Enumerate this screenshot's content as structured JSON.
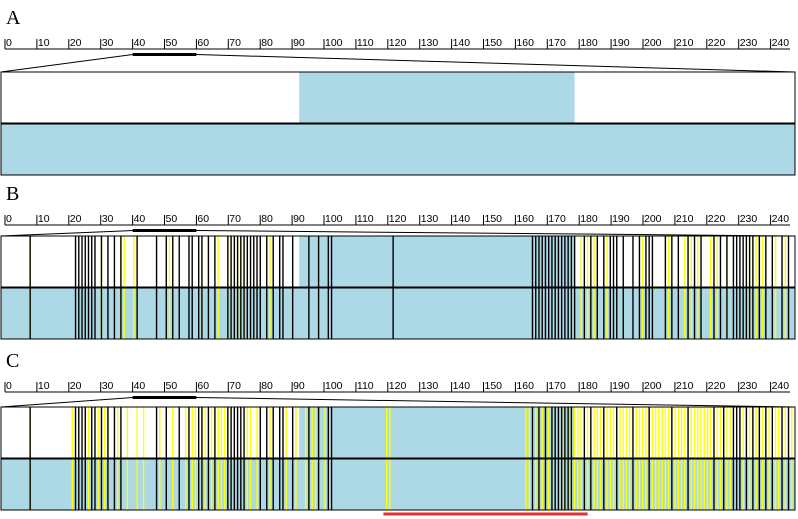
{
  "colors": {
    "track_fill": "#add8e6",
    "background": "#ffffff",
    "line": "#000000",
    "highlight": "#ffff00",
    "marker": "#e03030"
  },
  "ruler": {
    "ticks": [
      "0",
      "10",
      "20",
      "30",
      "40",
      "50",
      "60",
      "70",
      "80",
      "90",
      "100",
      "110",
      "120",
      "130",
      "140",
      "150",
      "160",
      "170",
      "180",
      "190",
      "200",
      "210",
      "220",
      "230",
      "240"
    ],
    "zoom_region": [
      40,
      60
    ]
  },
  "panels": [
    {
      "label": "A",
      "top_track": {
        "shaded_region": [
          92,
          177
        ]
      },
      "bottom_track": {
        "shaded_region": [
          0,
          245
        ]
      },
      "black_lines": [],
      "yellow_lines": []
    },
    {
      "label": "B",
      "top_track": {
        "shaded_region": [
          92,
          177
        ]
      },
      "bottom_track": {
        "shaded_region": [
          0,
          245
        ]
      },
      "black_lines": [
        9,
        23,
        24,
        25,
        26,
        27,
        28,
        29,
        31,
        33,
        35,
        37,
        42,
        48,
        51,
        53,
        55,
        58,
        59,
        61,
        62,
        64,
        66,
        70,
        71,
        72,
        73,
        74,
        75,
        76,
        77,
        78,
        79,
        80,
        82,
        84,
        86,
        87,
        90,
        95,
        98,
        101,
        102,
        121,
        164,
        165,
        166,
        167,
        168,
        169,
        170,
        171,
        172,
        173,
        174,
        175,
        176,
        177,
        180,
        182,
        184,
        186,
        188,
        189,
        190,
        192,
        195,
        197,
        199,
        200,
        201,
        205,
        207,
        209,
        212,
        214,
        216,
        220,
        222,
        224,
        226,
        227,
        228,
        229,
        230,
        231,
        232,
        234,
        236,
        238,
        241,
        243
      ],
      "yellow_lines": [
        9,
        31,
        37,
        38,
        41,
        52,
        62,
        67,
        70,
        71,
        73,
        74,
        75,
        78,
        83,
        179,
        181,
        183,
        187,
        192,
        198,
        206,
        211,
        213,
        215,
        219,
        221,
        224,
        231,
        233,
        235,
        238,
        239,
        242
      ]
    },
    {
      "label": "C",
      "top_track": {
        "shaded_region": [
          92,
          177
        ]
      },
      "bottom_track": {
        "shaded_region": [
          0,
          245
        ]
      },
      "black_lines": [
        9,
        23,
        24,
        25,
        26,
        28,
        29,
        31,
        33,
        35,
        37,
        48,
        51,
        55,
        58,
        61,
        62,
        64,
        66,
        70,
        71,
        72,
        73,
        74,
        75,
        80,
        82,
        84,
        86,
        87,
        90,
        95,
        98,
        101,
        102,
        164,
        166,
        168,
        170,
        171,
        172,
        173,
        174,
        175,
        176,
        180,
        182,
        186,
        190,
        195,
        200,
        207,
        212,
        220,
        223,
        226,
        227,
        228,
        230,
        232,
        234,
        236,
        238,
        241,
        243
      ],
      "yellow_lines": [
        9,
        22,
        24,
        27,
        30,
        32,
        33,
        36,
        39,
        42,
        44,
        49,
        53,
        57,
        59,
        60,
        62,
        63,
        64,
        65,
        66,
        67,
        68,
        69,
        71,
        72,
        76,
        77,
        79,
        82,
        83,
        88,
        91,
        94,
        96,
        97,
        100,
        119,
        120,
        162,
        163,
        164,
        165,
        166,
        167,
        168,
        169,
        170,
        171,
        172,
        173,
        174,
        175,
        176,
        177,
        178,
        179,
        181,
        183,
        184,
        185,
        187,
        188,
        189,
        191,
        192,
        193,
        194,
        196,
        197,
        198,
        199,
        200,
        201,
        202,
        203,
        204,
        205,
        206,
        208,
        209,
        210,
        211,
        213,
        214,
        215,
        216,
        217,
        218,
        219,
        221,
        222,
        224,
        225,
        229,
        231,
        233,
        235,
        237,
        239,
        240,
        242,
        244
      ],
      "marker_range": [
        118,
        181
      ]
    }
  ]
}
